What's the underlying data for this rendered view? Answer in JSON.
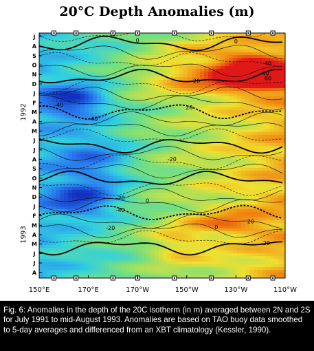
{
  "chart_data": {
    "type": "heatmap",
    "title": "20°C Depth Anomalies (m)",
    "x_tick_labels": [
      "150°E",
      "170°E",
      "170°W",
      "150°W",
      "130°W",
      "110°W"
    ],
    "x_ticks_deg_east": [
      150,
      170,
      190,
      210,
      230,
      250
    ],
    "xlim_deg_east": [
      150,
      250
    ],
    "y_month_labels": [
      "J",
      "A",
      "S",
      "O",
      "N",
      "D",
      "J",
      "F",
      "M",
      "A",
      "M",
      "J",
      "J",
      "A",
      "S",
      "O",
      "N",
      "D",
      "J",
      "F",
      "M",
      "A",
      "M",
      "J",
      "J",
      "A"
    ],
    "y_year_labels": [
      {
        "label": "1992",
        "month_index": 8
      },
      {
        "label": "1993",
        "month_index": 21
      }
    ],
    "y_direction": "time increases downward (July 1991 at top, August 1993 at bottom)",
    "buoy_longitudes_deg_east": [
      156,
      165,
      180,
      190,
      205,
      220,
      235,
      245
    ],
    "contour_labels": [
      {
        "text": "0",
        "lon": 190,
        "month": 0.6
      },
      {
        "text": "0",
        "lon": 230,
        "month": 0.7
      },
      {
        "text": "40",
        "lon": 243,
        "month": 3.0
      },
      {
        "text": "40",
        "lon": 242,
        "month": 4.1
      },
      {
        "text": "60",
        "lon": 243,
        "month": 4.6
      },
      {
        "text": "20",
        "lon": 214,
        "month": 4.9
      },
      {
        "text": "-40",
        "lon": 158,
        "month": 7.4
      },
      {
        "text": "20",
        "lon": 211,
        "month": 7.7
      },
      {
        "text": "-40",
        "lon": 172,
        "month": 8.9
      },
      {
        "text": "-20",
        "lon": 204,
        "month": 13.2
      },
      {
        "text": "-20",
        "lon": 183,
        "month": 17.3
      },
      {
        "text": "0",
        "lon": 194,
        "month": 17.6
      },
      {
        "text": "-40",
        "lon": 183,
        "month": 18.6
      },
      {
        "text": "0",
        "lon": 222,
        "month": 20.4
      },
      {
        "text": "20",
        "lon": 236,
        "month": 19.8
      },
      {
        "text": "-20",
        "lon": 179,
        "month": 20.5
      },
      {
        "text": "-20",
        "lon": 242,
        "month": 22.1
      }
    ],
    "value_range_m": [
      -60,
      60
    ],
    "grid": false,
    "legend": "none"
  },
  "colors": {
    "min": "#1230c0",
    "low": "#2a7ff0",
    "mid_low": "#30d0e0",
    "zero": "#7ce078",
    "mid_high": "#f0e030",
    "high": "#f08010",
    "max": "#e01818",
    "caption_bg": "#000000",
    "caption_text": "#ffffff"
  },
  "caption": "Fig. 6: Anomalies in the depth of the 20C isotherm (in m) averaged between 2N and 2S for July 1991 to mid-August 1993.  Anomalies are based on TAO buoy data smoothed to 5-day averages and differenced from an XBT climatology (Kessler, 1990)."
}
